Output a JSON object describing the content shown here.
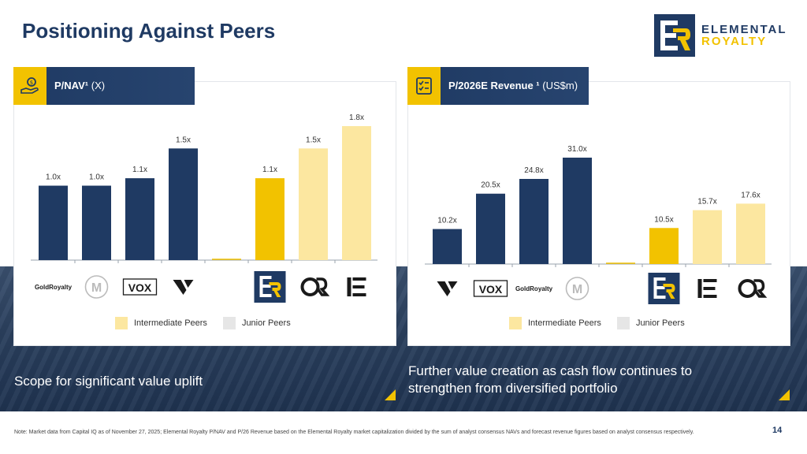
{
  "page": {
    "title": "Positioning Against Peers",
    "page_number": "14"
  },
  "logo": {
    "line1": "ELEMENTAL",
    "line2": "ROYALTY"
  },
  "left_panel": {
    "title_bold": "P/NAV¹",
    "title_unit": "(X)",
    "icon": "money-hand-icon"
  },
  "right_panel": {
    "title_bold": "P/2026E Revenue ¹",
    "title_unit": "(US$m)",
    "icon": "checklist-icon"
  },
  "legend": {
    "intermediate": "Intermediate Peers",
    "junior": "Junior Peers"
  },
  "captions": {
    "left": "Scope for significant value uplift",
    "right": "Further value creation as cash flow continues to strengthen from diversified portfolio"
  },
  "footnote": "Note: Market data from Capital IQ as of November 27, 2025; Elemental Royalty P/NAV and P/26 Revenue based on the Elemental Royalty market capitalization divided by the sum of analyst consensus NAVs and forecast revenue figures based on analyst consensus respectively.",
  "colors": {
    "navy": "#1f3a63",
    "gold": "#f2c200",
    "light_gold": "#fce7a0",
    "junior": "#e6e6e6"
  },
  "chart_data": [
    {
      "type": "bar",
      "title": "P/NAV¹ (X)",
      "categories": [
        "GoldRoyalty",
        "Metalla",
        "VOX",
        "Vox Royalty",
        "",
        "Elemental Royalty",
        "Osisko Royalties",
        "Triple Flag"
      ],
      "values": [
        1.0,
        1.0,
        1.1,
        1.5,
        null,
        1.1,
        1.5,
        1.8
      ],
      "labels": [
        "1.0x",
        "1.0x",
        "1.1x",
        "1.5x",
        "",
        "1.1x",
        "1.5x",
        "1.8x"
      ],
      "groups": [
        "junior",
        "junior",
        "junior",
        "junior",
        "gap",
        "self",
        "intermediate",
        "intermediate"
      ],
      "ylim": [
        0,
        1.8
      ]
    },
    {
      "type": "bar",
      "title": "P/2026E Revenue ¹ (US$m)",
      "categories": [
        "Vox Royalty",
        "VOX",
        "GoldRoyalty",
        "Metalla",
        "",
        "Elemental Royalty",
        "Triple Flag",
        "Osisko Royalties"
      ],
      "values": [
        10.2,
        20.5,
        24.8,
        31.0,
        null,
        10.5,
        15.7,
        17.6
      ],
      "labels": [
        "10.2x",
        "20.5x",
        "24.8x",
        "31.0x",
        "",
        "10.5x",
        "15.7x",
        "17.6x"
      ],
      "groups": [
        "junior",
        "junior",
        "junior",
        "junior",
        "gap",
        "self",
        "intermediate",
        "intermediate"
      ],
      "ylim": [
        0,
        31.0
      ]
    }
  ],
  "peer_logos": {
    "goldroyalty": "GoldRoyalty",
    "metalla": "M",
    "vox": "VOX"
  }
}
